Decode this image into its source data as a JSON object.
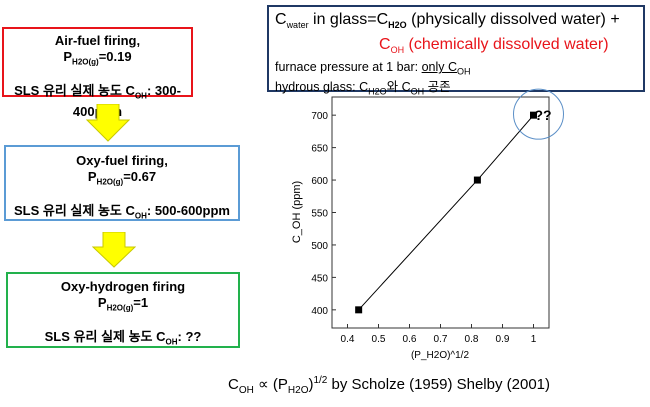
{
  "steps": [
    {
      "title": "Air-fuel firing,",
      "p_label": "P",
      "p_sub": "H2O(g)",
      "p_value": "=0.19",
      "conc_prefix": "SLS 유리 실제 농도 C",
      "conc_sub": "OH",
      "conc_value": ": 300-400ppm",
      "border": "#e8141a"
    },
    {
      "title": "Oxy-fuel firing,",
      "p_label": "P",
      "p_sub": "H2O(g)",
      "p_value": "=0.67",
      "conc_prefix": "SLS 유리 실제 농도 C",
      "conc_sub": "OH",
      "conc_value": ": 500-600ppm",
      "border": "#5b9bd5"
    },
    {
      "title": "Oxy-hydrogen firing",
      "p_label": "P",
      "p_sub": "H2O(g)",
      "p_value": "=1",
      "conc_prefix": "SLS 유리 실제 농도 C",
      "conc_sub": "OH",
      "conc_value": ": ??",
      "border": "#22b14c"
    }
  ],
  "arrow_color": "#ffff00",
  "info": {
    "l1_a": "C",
    "l1_sub": "water",
    "l1_b": " in glass=C",
    "l1_sub2": "H2O",
    "l1_c": " (physically dissolved water) +",
    "l2_a": "C",
    "l2_sub": "OH",
    "l2_b": " (chemically dissolved water)",
    "l3_a": "furnace pressure at 1 bar: ",
    "l3_u": "only C",
    "l3_usub": "OH",
    "l4_a": "hydrous glass: C",
    "l4_sub": "H2O",
    "l4_b": "와 C",
    "l4_sub2": "OH",
    "l4_c": " 공존"
  },
  "caption": {
    "a": "C",
    "a_sub": "OH",
    "b": " ∝ (P",
    "b_sub": "H2O",
    "c": ")",
    "c_sup": "1/2",
    "d": " by Scholze (1959) Shelby (2001)"
  },
  "chart_data": {
    "type": "line",
    "x": [
      0.436,
      0.819,
      1.0
    ],
    "y": [
      400,
      600,
      700
    ],
    "xlabel": "(P_H2O)^1/2",
    "ylabel": "C_OH (ppm)",
    "xlim": [
      0.35,
      1.05
    ],
    "ylim": [
      372,
      728
    ],
    "xticks": [
      "0.4",
      "0.5",
      "0.6",
      "0.7",
      "0.8",
      "0.9",
      "1"
    ],
    "yticks": [
      "400",
      "450",
      "500",
      "550",
      "600",
      "650",
      "700"
    ],
    "annotation": "??",
    "highlight_circle_color": "#5b8fc7",
    "grid": false
  }
}
